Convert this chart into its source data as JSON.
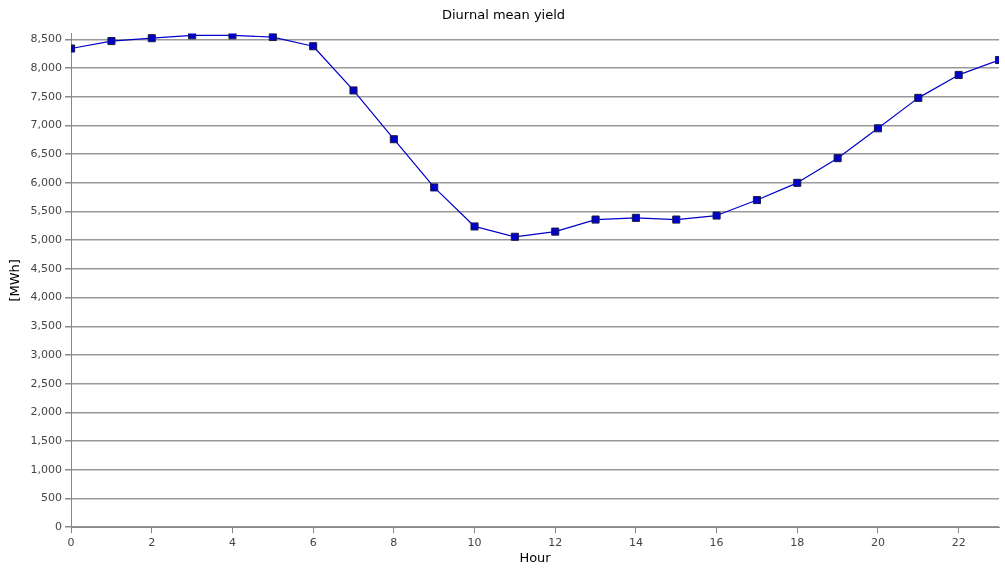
{
  "chart_data": {
    "type": "line",
    "title": "Diurnal mean yield",
    "xlabel": "Hour",
    "ylabel": "[MWh]",
    "x": [
      0,
      1,
      2,
      3,
      4,
      5,
      6,
      7,
      8,
      9,
      10,
      11,
      12,
      13,
      14,
      15,
      16,
      17,
      18,
      19,
      20,
      21,
      22,
      23
    ],
    "series": [
      {
        "color": "#0000c8",
        "values": [
          8340,
          8470,
          8520,
          8570,
          8570,
          8540,
          8380,
          7610,
          6760,
          5920,
          5240,
          5060,
          5150,
          5360,
          5390,
          5360,
          5430,
          5700,
          6000,
          6430,
          6950,
          7480,
          7880,
          8140
        ]
      }
    ],
    "xlim": [
      0,
      23
    ],
    "xticks": [
      0,
      2,
      4,
      6,
      8,
      10,
      12,
      14,
      16,
      18,
      20,
      22
    ],
    "ylim": [
      0,
      8600
    ],
    "yticks": [
      0,
      500,
      {
        "value": 1000,
        "label": "1,000"
      },
      {
        "value": 1500,
        "label": "1,500"
      },
      {
        "value": 2000,
        "label": "2,000"
      },
      {
        "value": 2500,
        "label": "2,500"
      },
      {
        "value": 3000,
        "label": "3,000"
      },
      {
        "value": 3500,
        "label": "3,500"
      },
      {
        "value": 4000,
        "label": "4,000"
      },
      {
        "value": 4500,
        "label": "4,500"
      },
      {
        "value": 5000,
        "label": "5,000"
      },
      {
        "value": 5500,
        "label": "5,500"
      },
      {
        "value": 6000,
        "label": "6,000"
      },
      {
        "value": 6500,
        "label": "6,500"
      },
      {
        "value": 7000,
        "label": "7,000"
      },
      {
        "value": 7500,
        "label": "7,500"
      },
      {
        "value": 8000,
        "label": "8,000"
      },
      {
        "value": 8500,
        "label": "8,500"
      }
    ],
    "grid": "y",
    "legend": false,
    "marker": "square",
    "line_style": "solid"
  }
}
